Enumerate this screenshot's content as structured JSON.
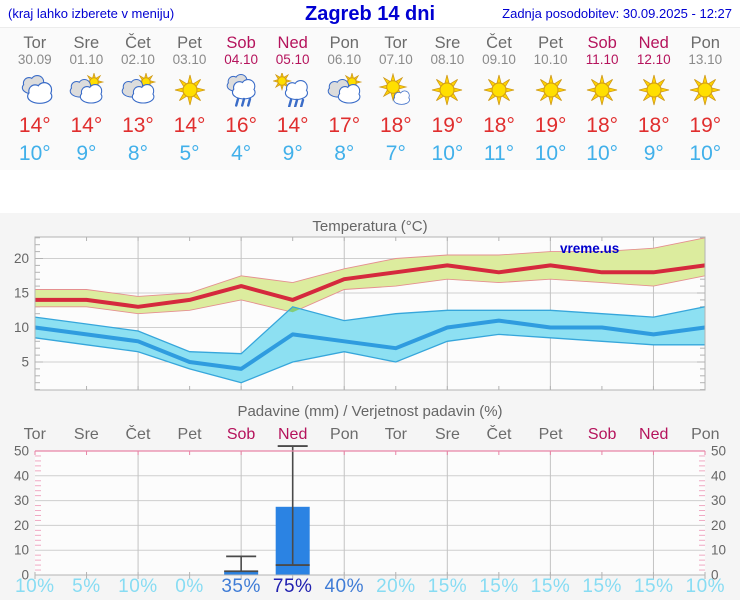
{
  "header": {
    "hint": "(kraj lahko izberete v meniju)",
    "title": "Zagreb 14 dni",
    "updated": "Zadnja posodobitev: 30.09.2025 - 12:27"
  },
  "watermark": "vreme.us",
  "days": [
    {
      "name": "Tor",
      "date": "30.09",
      "weekend": false,
      "icon": "cloudy",
      "high": "14°",
      "low": "10°",
      "prob": "10%",
      "prob_level": "low"
    },
    {
      "name": "Sre",
      "date": "01.10",
      "weekend": false,
      "icon": "partly-cloudy",
      "high": "14°",
      "low": "9°",
      "prob": "5%",
      "prob_level": "low"
    },
    {
      "name": "Čet",
      "date": "02.10",
      "weekend": false,
      "icon": "partly-cloudy",
      "high": "13°",
      "low": "8°",
      "prob": "10%",
      "prob_level": "low"
    },
    {
      "name": "Pet",
      "date": "03.10",
      "weekend": false,
      "icon": "sunny",
      "high": "14°",
      "low": "5°",
      "prob": "0%",
      "prob_level": "low"
    },
    {
      "name": "Sob",
      "date": "04.10",
      "weekend": true,
      "icon": "rain",
      "high": "16°",
      "low": "4°",
      "prob": "35%",
      "prob_level": "mid"
    },
    {
      "name": "Ned",
      "date": "05.10",
      "weekend": true,
      "icon": "sun-rain",
      "high": "14°",
      "low": "9°",
      "prob": "75%",
      "prob_level": "high"
    },
    {
      "name": "Pon",
      "date": "06.10",
      "weekend": false,
      "icon": "partly-cloudy",
      "high": "17°",
      "low": "8°",
      "prob": "40%",
      "prob_level": "mid"
    },
    {
      "name": "Tor",
      "date": "07.10",
      "weekend": false,
      "icon": "sun-small-cloud",
      "high": "18°",
      "low": "7°",
      "prob": "20%",
      "prob_level": "low"
    },
    {
      "name": "Sre",
      "date": "08.10",
      "weekend": false,
      "icon": "sunny",
      "high": "19°",
      "low": "10°",
      "prob": "15%",
      "prob_level": "low"
    },
    {
      "name": "Čet",
      "date": "09.10",
      "weekend": false,
      "icon": "sunny",
      "high": "18°",
      "low": "11°",
      "prob": "15%",
      "prob_level": "low"
    },
    {
      "name": "Pet",
      "date": "10.10",
      "weekend": false,
      "icon": "sunny",
      "high": "19°",
      "low": "10°",
      "prob": "15%",
      "prob_level": "low"
    },
    {
      "name": "Sob",
      "date": "11.10",
      "weekend": true,
      "icon": "sunny",
      "high": "18°",
      "low": "10°",
      "prob": "15%",
      "prob_level": "low"
    },
    {
      "name": "Ned",
      "date": "12.10",
      "weekend": true,
      "icon": "sunny",
      "high": "18°",
      "low": "9°",
      "prob": "15%",
      "prob_level": "low"
    },
    {
      "name": "Pon",
      "date": "13.10",
      "weekend": false,
      "icon": "sunny",
      "high": "19°",
      "low": "10°",
      "prob": "10%",
      "prob_level": "low"
    }
  ],
  "chart_data": [
    {
      "type": "line",
      "title": "Temperatura (°C)",
      "categories": [
        "Tor 30.09",
        "Sre 01.10",
        "Čet 02.10",
        "Pet 03.10",
        "Sob 04.10",
        "Ned 05.10",
        "Pon 06.10",
        "Tor 07.10",
        "Sre 08.10",
        "Čet 09.10",
        "Pet 10.10",
        "Sob 11.10",
        "Ned 12.10",
        "Pon 13.10"
      ],
      "ylim": [
        1,
        23
      ],
      "yticks": [
        5,
        10,
        15,
        20
      ],
      "series": {
        "max": [
          14,
          14,
          13,
          14,
          16,
          14,
          17,
          18,
          19,
          18,
          19,
          18,
          18,
          19
        ],
        "max_upper": [
          15.5,
          15.5,
          14.5,
          15,
          17.5,
          16.5,
          18.5,
          20,
          20.5,
          20.5,
          21,
          21,
          21.5,
          23
        ],
        "max_lower": [
          13,
          13,
          12,
          12.5,
          14,
          12.2,
          15.5,
          16,
          17,
          16.5,
          17,
          16.5,
          16,
          17.5
        ],
        "min": [
          10,
          9,
          8,
          5,
          4,
          9,
          8,
          7,
          10,
          11,
          10,
          10,
          9,
          10
        ],
        "min_upper": [
          11.5,
          10.5,
          9.5,
          6.5,
          6.2,
          13,
          11,
          12,
          12.5,
          12.5,
          12.5,
          12,
          11.5,
          13
        ],
        "min_lower": [
          8.5,
          7.5,
          6.5,
          4,
          2,
          5,
          6.5,
          5,
          8,
          9,
          8.5,
          8,
          7.5,
          7.5
        ]
      },
      "overlap_poly": [
        [
          5.91,
          12.37
        ],
        [
          6,
          13
        ],
        [
          6.15,
          12.7
        ],
        [
          6,
          12.2
        ]
      ]
    },
    {
      "type": "bar",
      "title": "Padavine (mm) / Verjetnost padavin (%)",
      "categories": [
        "Tor",
        "Sre",
        "Čet",
        "Pet",
        "Sob",
        "Ned",
        "Pon",
        "Tor",
        "Sre",
        "Čet",
        "Pet",
        "Sob",
        "Ned",
        "Pon"
      ],
      "values": [
        0,
        0,
        0,
        0,
        1.5,
        27.5,
        0,
        0,
        0,
        0,
        0,
        0,
        0,
        0
      ],
      "whiskers": [
        {
          "day": 5,
          "low": 1.5,
          "high": 7.5
        },
        {
          "day": 6,
          "low": 4,
          "high": 52
        }
      ],
      "probabilities": [
        "10%",
        "5%",
        "10%",
        "0%",
        "35%",
        "75%",
        "40%",
        "20%",
        "15%",
        "15%",
        "15%",
        "15%",
        "15%",
        "10%"
      ],
      "ylim": [
        0,
        50
      ],
      "yticks": [
        0,
        10,
        20,
        30,
        40,
        50
      ]
    }
  ],
  "colors": {
    "header_blue": "#0000d2",
    "weekend_red": "#b5135c",
    "high_red": "#e02e2e",
    "low_blue": "#41b0ea",
    "red_line": "#d5293d",
    "green_band": "#dcec9e",
    "green_edge": "#e59090",
    "blue_line": "#2f9cdf",
    "cyan_band": "#8de0f2",
    "cyan_edge": "#36a6db",
    "overlap_green": "#83cd79",
    "bar_blue": "#2b83e3",
    "whisker_gray": "#4a4a4a",
    "grid_gray": "#cfcfcf",
    "border_gray": "#b3b3b3",
    "pink_border": "#e884a6",
    "pink_tick": "#f0a9c3",
    "text_gray": "#666666"
  }
}
